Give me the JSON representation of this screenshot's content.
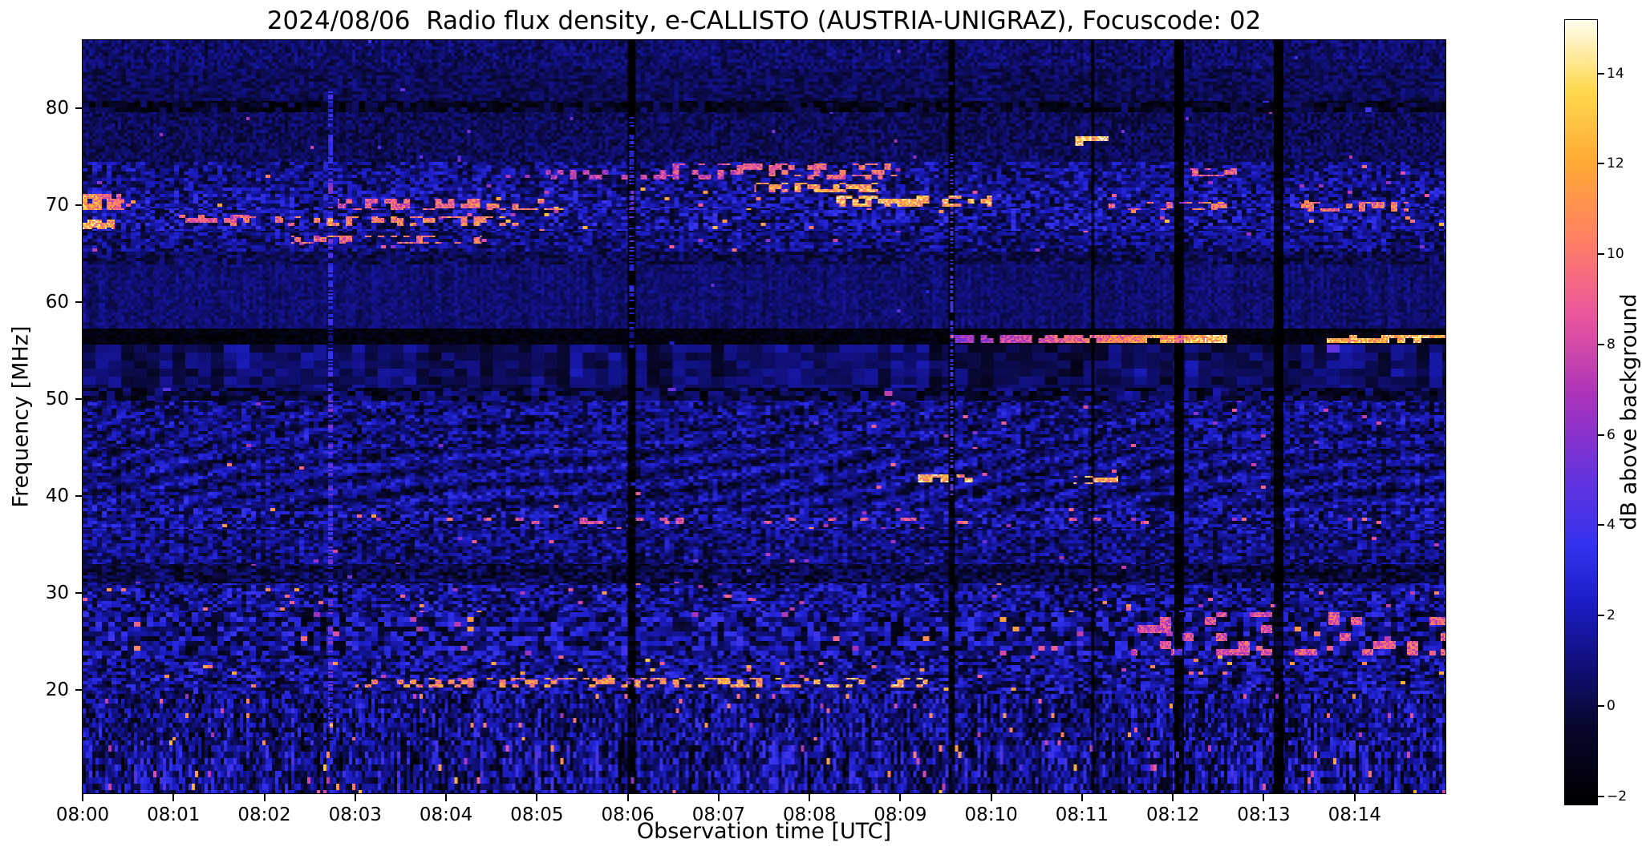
{
  "chart_data": {
    "type": "heatmap",
    "title": "2024/08/06  Radio flux density, e-CALLISTO (AUSTRIA-UNIGRAZ), Focuscode: 02",
    "xlabel": "Observation time [UTC]",
    "ylabel": "Frequency [MHz]",
    "x_range_minutes": [
      0,
      15
    ],
    "x_ticks": [
      {
        "t": 0,
        "label": "08:00"
      },
      {
        "t": 1,
        "label": "08:01"
      },
      {
        "t": 2,
        "label": "08:02"
      },
      {
        "t": 3,
        "label": "08:03"
      },
      {
        "t": 4,
        "label": "08:04"
      },
      {
        "t": 5,
        "label": "08:05"
      },
      {
        "t": 6,
        "label": "08:06"
      },
      {
        "t": 7,
        "label": "08:07"
      },
      {
        "t": 8,
        "label": "08:08"
      },
      {
        "t": 9,
        "label": "08:09"
      },
      {
        "t": 10,
        "label": "08:10"
      },
      {
        "t": 11,
        "label": "08:11"
      },
      {
        "t": 12,
        "label": "08:12"
      },
      {
        "t": 13,
        "label": "08:13"
      },
      {
        "t": 14,
        "label": "08:14"
      }
    ],
    "y_range": [
      9.3,
      87.0
    ],
    "y_ticks": [
      {
        "v": 20,
        "label": "20"
      },
      {
        "v": 30,
        "label": "30"
      },
      {
        "v": 40,
        "label": "40"
      },
      {
        "v": 50,
        "label": "50"
      },
      {
        "v": 60,
        "label": "60"
      },
      {
        "v": 70,
        "label": "70"
      },
      {
        "v": 80,
        "label": "80"
      }
    ],
    "colorbar": {
      "label": "dB above background",
      "vmin": -2.2,
      "vmax": 15.2,
      "ticks": [
        {
          "v": -2,
          "label": "−2"
        },
        {
          "v": 0,
          "label": "0"
        },
        {
          "v": 2,
          "label": "2"
        },
        {
          "v": 4,
          "label": "4"
        },
        {
          "v": 6,
          "label": "6"
        },
        {
          "v": 8,
          "label": "8"
        },
        {
          "v": 10,
          "label": "10"
        },
        {
          "v": 12,
          "label": "12"
        },
        {
          "v": 14,
          "label": "14"
        }
      ]
    },
    "colormap": {
      "stops": [
        [
          0.0,
          "#000000"
        ],
        [
          0.1,
          "#07072e"
        ],
        [
          0.18,
          "#10107c"
        ],
        [
          0.26,
          "#1d1dc8"
        ],
        [
          0.33,
          "#3333ee"
        ],
        [
          0.42,
          "#6633dd"
        ],
        [
          0.52,
          "#aa33bb"
        ],
        [
          0.62,
          "#e8559f"
        ],
        [
          0.72,
          "#ff7f63"
        ],
        [
          0.82,
          "#ffaa33"
        ],
        [
          0.91,
          "#ffd94d"
        ],
        [
          1.0,
          "#fffdf0"
        ]
      ]
    },
    "spectrogram": {
      "seed": 77,
      "bands": [
        {
          "f0": 84.0,
          "f1": 87.0,
          "base": 0.6,
          "amp": 1.0,
          "cw": 2,
          "ch": 2,
          "bp": 0.001,
          "bamp": 5,
          "stripe": 0.3
        },
        {
          "f0": 80.8,
          "f1": 84.0,
          "base": 0.3,
          "amp": 0.9,
          "cw": 3,
          "ch": 2,
          "bp": 0.0008,
          "bamp": 5,
          "stripe": 0.2
        },
        {
          "f0": 79.6,
          "f1": 80.8,
          "base": -0.8,
          "amp": 1.6,
          "cw": 4,
          "ch": 3,
          "bp": 0.001,
          "bamp": 4,
          "stripe": 0.4
        },
        {
          "f0": 74.5,
          "f1": 79.6,
          "base": 0.3,
          "amp": 1.0,
          "cw": 2,
          "ch": 2,
          "bp": 0.0015,
          "bamp": 6,
          "stripe": 0.25
        },
        {
          "f0": 71.8,
          "f1": 74.5,
          "base": 1.0,
          "amp": 1.9,
          "cw": 3,
          "ch": 2,
          "bp": 0.006,
          "bamp": 8,
          "stripe": 0.4
        },
        {
          "f0": 69.6,
          "f1": 71.8,
          "base": 1.3,
          "amp": 2.2,
          "cw": 3,
          "ch": 2,
          "bp": 0.012,
          "bamp": 10,
          "stripe": 0.5
        },
        {
          "f0": 67.4,
          "f1": 69.6,
          "base": 1.3,
          "amp": 2.2,
          "cw": 3,
          "ch": 2,
          "bp": 0.01,
          "bamp": 10,
          "stripe": 0.5
        },
        {
          "f0": 65.2,
          "f1": 67.4,
          "base": 0.9,
          "amp": 1.8,
          "cw": 3,
          "ch": 2,
          "bp": 0.006,
          "bamp": 8,
          "stripe": 0.4
        },
        {
          "f0": 63.8,
          "f1": 65.2,
          "base": 0.2,
          "amp": 1.2,
          "cw": 3,
          "ch": 2,
          "bp": 0.001,
          "bamp": 5,
          "stripe": 0.3
        },
        {
          "f0": 57.2,
          "f1": 63.8,
          "base": 0.7,
          "amp": 0.7,
          "cw": 2,
          "ch": 2,
          "bp": 0.0005,
          "bamp": 4,
          "stripe": 0.35
        },
        {
          "f0": 55.6,
          "f1": 57.2,
          "base": -1.6,
          "amp": 0.6,
          "cw": 3,
          "ch": 2,
          "bp": 0.0005,
          "bamp": 3,
          "stripe": 0.1
        },
        {
          "f0": 51.2,
          "f1": 55.6,
          "base": 0.4,
          "amp": 0.9,
          "cw": 8,
          "ch": 5,
          "bp": 0.001,
          "bamp": 4,
          "stripe": 0.8
        },
        {
          "f0": 49.8,
          "f1": 51.2,
          "base": -0.2,
          "amp": 1.8,
          "cw": 5,
          "ch": 3,
          "bp": 0.004,
          "bamp": 6,
          "stripe": 0.5
        },
        {
          "f0": 44.8,
          "f1": 49.8,
          "base": 0.9,
          "amp": 1.9,
          "cw": 3,
          "ch": 2,
          "bp": 0.006,
          "bamp": 7,
          "stripe": 0.5,
          "moire": 0.5
        },
        {
          "f0": 38.8,
          "f1": 44.8,
          "base": 0.9,
          "amp": 1.7,
          "cw": 3,
          "ch": 2,
          "bp": 0.004,
          "bamp": 8,
          "stripe": 0.45,
          "moire": 0.9
        },
        {
          "f0": 36.6,
          "f1": 38.8,
          "base": 1.2,
          "amp": 2.3,
          "cw": 3,
          "ch": 2,
          "bp": 0.012,
          "bamp": 9,
          "stripe": 0.5
        },
        {
          "f0": 33.0,
          "f1": 36.6,
          "base": 0.9,
          "amp": 1.8,
          "cw": 3,
          "ch": 2,
          "bp": 0.005,
          "bamp": 7,
          "stripe": 0.45
        },
        {
          "f0": 30.9,
          "f1": 33.0,
          "base": -0.2,
          "amp": 1.6,
          "cw": 3,
          "ch": 2,
          "bp": 0.003,
          "bamp": 6,
          "stripe": 0.4
        },
        {
          "f0": 27.9,
          "f1": 30.9,
          "base": 1.1,
          "amp": 2.3,
          "cw": 3,
          "ch": 2,
          "bp": 0.012,
          "bamp": 9,
          "stripe": 0.55
        },
        {
          "f0": 23.6,
          "f1": 27.9,
          "base": 1.1,
          "amp": 2.5,
          "cw": 4,
          "ch": 3,
          "bp": 0.014,
          "bamp": 9,
          "stripe": 0.6
        },
        {
          "f0": 19.6,
          "f1": 23.6,
          "base": 1.1,
          "amp": 2.4,
          "cw": 3,
          "ch": 2,
          "bp": 0.016,
          "bamp": 10,
          "stripe": 0.6
        },
        {
          "f0": 14.8,
          "f1": 19.6,
          "base": 0.9,
          "amp": 2.2,
          "cw": 2,
          "ch": 3,
          "bp": 0.012,
          "bamp": 9,
          "stripe": 1.1
        },
        {
          "f0": 9.3,
          "f1": 14.8,
          "base": 1.0,
          "amp": 2.4,
          "cw": 2,
          "ch": 4,
          "bp": 0.014,
          "bamp": 10,
          "stripe": 1.3
        }
      ],
      "vertical_streaks": [
        {
          "t": 2.72,
          "w": 0.05,
          "dv": 3.0,
          "f0": 15.0,
          "f1": 82.0,
          "duty": 0.6
        },
        {
          "t": 6.05,
          "w": 0.09,
          "dv": -3.5,
          "f0": 9.3,
          "f1": 87.0
        },
        {
          "t": 6.05,
          "w": 0.05,
          "dv": 6.0,
          "f0": 55.0,
          "f1": 79.0,
          "duty": 0.45
        },
        {
          "t": 9.57,
          "w": 0.07,
          "dv": -3.0,
          "f0": 9.3,
          "f1": 87.0
        },
        {
          "t": 9.57,
          "w": 0.04,
          "dv": 6.0,
          "f0": 40.0,
          "f1": 76.0,
          "duty": 0.5
        },
        {
          "t": 11.12,
          "w": 0.035,
          "dv": -2.5,
          "f0": 9.3,
          "f1": 87.0
        },
        {
          "t": 12.07,
          "w": 0.1,
          "dv": -3.5,
          "f0": 9.3,
          "f1": 87.0
        },
        {
          "t": 13.17,
          "w": 0.1,
          "dv": -3.5,
          "f0": 9.3,
          "f1": 87.0
        }
      ],
      "events": [
        {
          "t0": 9.55,
          "t1": 12.6,
          "f": 56.2,
          "fw": 0.9,
          "a0": 6,
          "a1": 13,
          "duty": 0.8,
          "cell": 4
        },
        {
          "t0": 13.7,
          "t1": 15.0,
          "f": 56.2,
          "fw": 0.9,
          "a0": 12,
          "a1": 13,
          "duty": 0.65,
          "cell": 5
        },
        {
          "t0": 10.92,
          "t1": 11.3,
          "f": 76.6,
          "fw": 1.0,
          "a0": 13,
          "a1": 13,
          "duty": 0.7,
          "cell": 6
        },
        {
          "t0": 0.0,
          "t1": 0.45,
          "f": 70.3,
          "fw": 1.6,
          "a0": 12,
          "a1": 9,
          "duty": 0.8,
          "cell": 3
        },
        {
          "t0": 0.0,
          "t1": 0.35,
          "f": 68.0,
          "fw": 1.0,
          "a0": 13,
          "a1": 11,
          "duty": 0.85,
          "cell": 3
        },
        {
          "t0": 2.8,
          "t1": 5.3,
          "f": 70.1,
          "fw": 1.1,
          "a0": 8,
          "a1": 11,
          "duty": 0.4,
          "cell": 4
        },
        {
          "t0": 8.3,
          "t1": 10.0,
          "f": 70.4,
          "fw": 1.2,
          "a0": 12,
          "a1": 12,
          "duty": 0.5,
          "cell": 4
        },
        {
          "t0": 2.3,
          "t1": 4.4,
          "f": 66.4,
          "fw": 0.9,
          "a0": 9,
          "a1": 10,
          "duty": 0.35,
          "cell": 4
        },
        {
          "t0": 5.1,
          "t1": 8.8,
          "f": 73.1,
          "fw": 0.9,
          "a0": 7,
          "a1": 9,
          "duty": 0.3,
          "cell": 4
        },
        {
          "t0": 9.2,
          "t1": 9.8,
          "f": 41.8,
          "fw": 0.9,
          "a0": 12,
          "a1": 12,
          "duty": 0.55,
          "cell": 5
        },
        {
          "t0": 10.9,
          "t1": 11.4,
          "f": 41.6,
          "fw": 0.9,
          "a0": 12,
          "a1": 12,
          "duty": 0.5,
          "cell": 5
        },
        {
          "t0": 3.0,
          "t1": 9.3,
          "f": 20.7,
          "fw": 0.9,
          "a0": 10,
          "a1": 12,
          "duty": 0.3,
          "cell": 4
        },
        {
          "t0": 11.55,
          "t1": 15.0,
          "f": 25.8,
          "fw": 4.4,
          "a0": 8,
          "a1": 9,
          "duty": 0.22,
          "cell": 7,
          "chy": 5,
          "block": true
        },
        {
          "t0": 6.3,
          "t1": 9.0,
          "f": 73.6,
          "fw": 1.4,
          "a0": 8,
          "a1": 10,
          "duty": 0.35,
          "cell": 4
        },
        {
          "t0": 7.4,
          "t1": 8.8,
          "f": 71.8,
          "fw": 1.0,
          "a0": 11,
          "a1": 12,
          "duty": 0.5,
          "cell": 4
        },
        {
          "t0": 1.0,
          "t1": 2.2,
          "f": 68.6,
          "fw": 0.8,
          "a0": 9,
          "a1": 8,
          "duty": 0.3,
          "cell": 4
        },
        {
          "t0": 11.3,
          "t1": 12.6,
          "f": 69.9,
          "fw": 0.8,
          "a0": 9,
          "a1": 10,
          "duty": 0.35,
          "cell": 4
        },
        {
          "t0": 13.4,
          "t1": 14.6,
          "f": 69.8,
          "fw": 0.9,
          "a0": 10,
          "a1": 10,
          "duty": 0.4,
          "cell": 4
        },
        {
          "t0": 12.2,
          "t1": 12.7,
          "f": 73.4,
          "fw": 0.8,
          "a0": 9,
          "a1": 9,
          "duty": 0.5,
          "cell": 4
        },
        {
          "t0": 1.6,
          "t1": 4.8,
          "f": 68.3,
          "fw": 0.9,
          "a0": 9,
          "a1": 11,
          "duty": 0.35,
          "cell": 4
        },
        {
          "t0": 4.0,
          "t1": 12.0,
          "f": 37.4,
          "fw": 0.7,
          "a0": 8,
          "a1": 9,
          "duty": 0.12,
          "cell": 5
        },
        {
          "t0": 6.0,
          "t1": 10.5,
          "f": 29.5,
          "fw": 0.6,
          "a0": 8,
          "a1": 9,
          "duty": 0.1,
          "cell": 5
        }
      ]
    }
  }
}
